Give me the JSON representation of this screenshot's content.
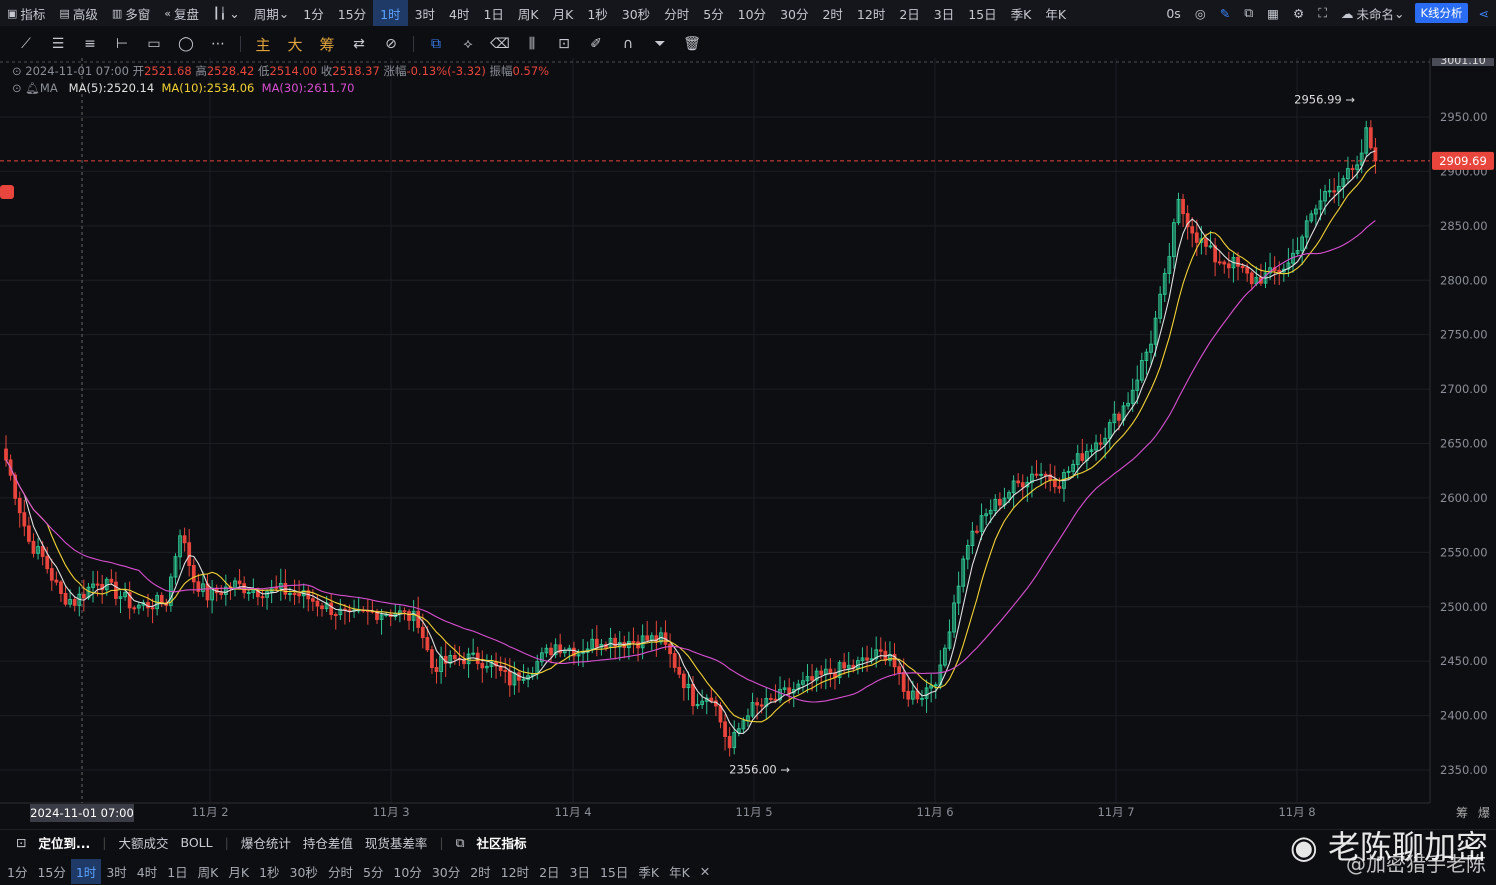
{
  "top_toolbar": {
    "left_items": [
      {
        "icon": "chart-indicator-icon",
        "label": "指标"
      },
      {
        "icon": "calendar-icon",
        "label": "高级"
      },
      {
        "icon": "multi-window-icon",
        "label": "多窗"
      },
      {
        "icon": "replay-icon",
        "label": "复盘"
      },
      {
        "icon": "candlestick-icon",
        "label": ""
      },
      {
        "icon": "chevron-down-icon",
        "label": "周期"
      }
    ],
    "periods": [
      "1分",
      "15分",
      "1时",
      "3时",
      "4时",
      "1日",
      "周K",
      "月K",
      "1秒",
      "30秒",
      "分时",
      "5分",
      "10分",
      "30分",
      "2时",
      "12时",
      "2日",
      "3日",
      "15日",
      "季K",
      "年K"
    ],
    "active_period": "1时",
    "right_items": [
      "0s",
      "未命名"
    ],
    "kline_button": "K线分析"
  },
  "drawing_toolbar": {
    "tools": [
      "line-icon",
      "parallel-lines-icon",
      "channel-icon",
      "horizontal-line-icon",
      "rectangle-icon",
      "circle-icon",
      "more-icon"
    ],
    "chinese_tools": [
      "主",
      "大",
      "筹"
    ],
    "right_tools": [
      "copy-icon",
      "ruler-icon",
      "eraser-icon",
      "candles-icon",
      "lock-icon",
      "note-icon",
      "magnet-icon",
      "filter-icon",
      "trash-icon"
    ]
  },
  "ohlc_info": {
    "datetime": "2024-11-01 07:00",
    "open_label": "开",
    "open": "2521.68",
    "high_label": "高",
    "high": "2528.42",
    "low_label": "低",
    "low": "2514.00",
    "close_label": "收",
    "close": "2518.37",
    "change_label": "涨幅",
    "change": "-0.13%(-3.32)",
    "amplitude_label": "振幅",
    "amplitude": "0.57%"
  },
  "ma_info": {
    "label": "MA",
    "ma5": "MA(5):2520.14",
    "ma10": "MA(10):2534.06",
    "ma30": "MA(30):2611.70"
  },
  "colors": {
    "up": "#2ec28f",
    "down": "#e8453c",
    "ma5": "#e0e0e0",
    "ma10": "#f2d233",
    "ma30": "#d94fd1",
    "accent": "#2a6df4"
  },
  "chart_data": {
    "type": "candlestick",
    "symbol_interval": "1时",
    "ylim": [
      2330,
      3010
    ],
    "y_ticks": [
      2350,
      2400,
      2450,
      2500,
      2550,
      2600,
      2650,
      2700,
      2750,
      2800,
      2850,
      2900,
      2950
    ],
    "y_tick_labels": [
      "2350.00",
      "2400.00",
      "2450.00",
      "2500.00",
      "2550.00",
      "2600.00",
      "2650.00",
      "2700.00",
      "2750.00",
      "2800.00",
      "2850.00",
      "2900.00",
      "2950.00"
    ],
    "x_labels": [
      "11月 2",
      "11月 3",
      "11月 4",
      "11月 5",
      "11月 6",
      "11月 7",
      "11月 8"
    ],
    "crosshair_x_label": "2024-11-01 07:00",
    "current_price_label": "2909.69",
    "current_price": 2909.69,
    "top_cut_label": "3001.10",
    "high_marker": "2956.99",
    "low_marker": "2356.00",
    "close_path": [
      [
        0,
        2635
      ],
      [
        5,
        2560
      ],
      [
        8,
        2545
      ],
      [
        12,
        2510
      ],
      [
        15,
        2505
      ],
      [
        20,
        2525
      ],
      [
        25,
        2510
      ],
      [
        28,
        2500
      ],
      [
        35,
        2505
      ],
      [
        38,
        2570
      ],
      [
        41,
        2525
      ],
      [
        44,
        2510
      ],
      [
        50,
        2520
      ],
      [
        55,
        2515
      ],
      [
        60,
        2515
      ],
      [
        65,
        2510
      ],
      [
        70,
        2500
      ],
      [
        75,
        2490
      ],
      [
        80,
        2495
      ],
      [
        85,
        2495
      ],
      [
        90,
        2488
      ],
      [
        93,
        2445
      ],
      [
        97,
        2450
      ],
      [
        100,
        2453
      ],
      [
        105,
        2450
      ],
      [
        110,
        2432
      ],
      [
        115,
        2445
      ],
      [
        120,
        2465
      ],
      [
        125,
        2460
      ],
      [
        130,
        2470
      ],
      [
        135,
        2468
      ],
      [
        140,
        2470
      ],
      [
        143,
        2470
      ],
      [
        147,
        2440
      ],
      [
        150,
        2415
      ],
      [
        154,
        2420
      ],
      [
        158,
        2370
      ],
      [
        162,
        2405
      ],
      [
        166,
        2410
      ],
      [
        170,
        2420
      ],
      [
        175,
        2430
      ],
      [
        180,
        2440
      ],
      [
        185,
        2445
      ],
      [
        190,
        2455
      ],
      [
        193,
        2458
      ],
      [
        196,
        2420
      ],
      [
        200,
        2420
      ],
      [
        204,
        2440
      ],
      [
        207,
        2505
      ],
      [
        210,
        2560
      ],
      [
        215,
        2590
      ],
      [
        220,
        2610
      ],
      [
        225,
        2625
      ],
      [
        230,
        2615
      ],
      [
        235,
        2640
      ],
      [
        240,
        2660
      ],
      [
        245,
        2690
      ],
      [
        250,
        2745
      ],
      [
        253,
        2800
      ],
      [
        256,
        2870
      ],
      [
        260,
        2840
      ],
      [
        264,
        2820
      ],
      [
        268,
        2815
      ],
      [
        272,
        2800
      ],
      [
        276,
        2805
      ],
      [
        280,
        2815
      ],
      [
        284,
        2850
      ],
      [
        288,
        2880
      ],
      [
        292,
        2895
      ],
      [
        295,
        2900
      ],
      [
        297,
        2935
      ],
      [
        299,
        2910
      ]
    ],
    "total_bars": 300,
    "ma_periods": [
      5,
      10,
      30
    ]
  },
  "bottom_indicator_bar": {
    "items": [
      "定位到...",
      "大额成交",
      "BOLL",
      "爆仓统计",
      "持仓差值",
      "现货基差率",
      "社区指标"
    ]
  },
  "bottom_periods": {
    "items": [
      "1分",
      "15分",
      "1时",
      "3时",
      "4时",
      "1日",
      "周K",
      "月K",
      "1秒",
      "30秒",
      "分时",
      "5分",
      "10分",
      "30分",
      "2时",
      "12时",
      "2日",
      "3日",
      "15日",
      "季K",
      "年K"
    ],
    "active": "1时",
    "right_corner": [
      "筹",
      "爆"
    ]
  },
  "watermark": {
    "line1": "老陈聊加密",
    "line2": "@加密猎手老陈"
  }
}
